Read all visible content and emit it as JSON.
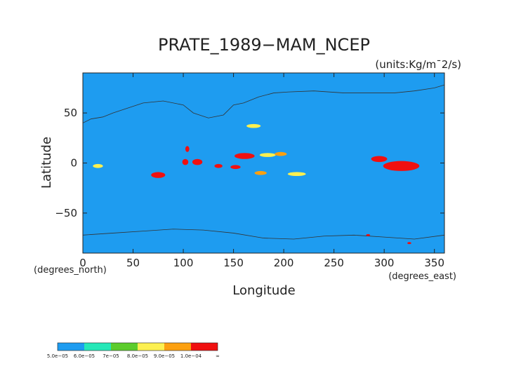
{
  "chart_data": {
    "type": "heatmap",
    "title": "PRATE_1989−MAM_NCEP",
    "units_label": "(units:Kg/m¯2/s)",
    "xlabel": "Longitude",
    "ylabel": "Latitude",
    "x_unit_note": "(degrees_east)",
    "y_unit_note": "(degrees_north)",
    "xlim": [
      0,
      360
    ],
    "ylim": [
      -90,
      90
    ],
    "x_ticks": [
      {
        "value": 0,
        "label": "0"
      },
      {
        "value": 50,
        "label": "50"
      },
      {
        "value": 100,
        "label": "100"
      },
      {
        "value": 150,
        "label": "150"
      },
      {
        "value": 200,
        "label": "200"
      },
      {
        "value": 250,
        "label": "250"
      },
      {
        "value": 300,
        "label": "300"
      },
      {
        "value": 350,
        "label": "350"
      }
    ],
    "y_ticks": [
      {
        "value": 50,
        "label": "50"
      },
      {
        "value": 0,
        "label": "0"
      },
      {
        "value": -50,
        "label": "−50"
      }
    ],
    "background_level_color": "#1e9cf0",
    "colorbar": {
      "colors": [
        "#1e9cf0",
        "#25e8b8",
        "#5ccc2c",
        "#fcf050",
        "#fca010",
        "#f01010"
      ],
      "labels": [
        "5.0e−05",
        "6.0e−05",
        "7e−05",
        "8.0e−05",
        "9.0e−05",
        "1.0e−04",
        "∞"
      ]
    },
    "features": [
      {
        "level": 5,
        "lon": 75,
        "lat": -12,
        "rx": 7,
        "ry": 3
      },
      {
        "level": 5,
        "lon": 102,
        "lat": 1,
        "rx": 3,
        "ry": 3
      },
      {
        "level": 5,
        "lon": 114,
        "lat": 1,
        "rx": 5,
        "ry": 3
      },
      {
        "level": 5,
        "lon": 135,
        "lat": -3,
        "rx": 4,
        "ry": 2
      },
      {
        "level": 5,
        "lon": 152,
        "lat": -4,
        "rx": 5,
        "ry": 2
      },
      {
        "level": 5,
        "lon": 161,
        "lat": 7,
        "rx": 10,
        "ry": 3
      },
      {
        "level": 5,
        "lon": 317,
        "lat": -3,
        "rx": 18,
        "ry": 5
      },
      {
        "level": 5,
        "lon": 295,
        "lat": 4,
        "rx": 8,
        "ry": 3
      },
      {
        "level": 5,
        "lon": 104,
        "lat": 14,
        "rx": 2,
        "ry": 3
      },
      {
        "level": 5,
        "lon": 325,
        "lat": -80,
        "rx": 2,
        "ry": 1
      },
      {
        "level": 5,
        "lon": 284,
        "lat": -72,
        "rx": 2,
        "ry": 1
      },
      {
        "level": 4,
        "lon": 197,
        "lat": 9,
        "rx": 6,
        "ry": 2
      },
      {
        "level": 4,
        "lon": 177,
        "lat": -10,
        "rx": 6,
        "ry": 2
      },
      {
        "level": 3,
        "lon": 213,
        "lat": -11,
        "rx": 9,
        "ry": 2
      },
      {
        "level": 3,
        "lon": 184,
        "lat": 8,
        "rx": 8,
        "ry": 2
      },
      {
        "level": 3,
        "lon": 170,
        "lat": 37,
        "rx": 7,
        "ry": 2
      },
      {
        "level": 3,
        "lon": 15,
        "lat": -3,
        "rx": 5,
        "ry": 2
      }
    ]
  },
  "map": {
    "boundaries": [
      {
        "fill": "#ffffff",
        "points": [
          [
            0,
            40
          ],
          [
            8,
            44
          ],
          [
            20,
            46
          ],
          [
            30,
            50
          ],
          [
            45,
            55
          ],
          [
            60,
            60
          ],
          [
            80,
            62
          ],
          [
            100,
            58
          ],
          [
            110,
            50
          ],
          [
            125,
            45
          ],
          [
            140,
            48
          ],
          [
            150,
            58
          ],
          [
            160,
            60
          ],
          [
            175,
            66
          ],
          [
            190,
            70
          ],
          [
            205,
            71
          ],
          [
            230,
            72
          ],
          [
            260,
            70
          ],
          [
            280,
            70
          ],
          [
            310,
            70
          ],
          [
            330,
            72
          ],
          [
            350,
            75
          ],
          [
            360,
            78
          ]
        ]
      },
      {
        "fill": "#ffffff",
        "points": [
          [
            0,
            -72
          ],
          [
            30,
            -70
          ],
          [
            60,
            -68
          ],
          [
            90,
            -66
          ],
          [
            120,
            -67
          ],
          [
            150,
            -70
          ],
          [
            180,
            -75
          ],
          [
            210,
            -76
          ],
          [
            240,
            -73
          ],
          [
            270,
            -72
          ],
          [
            300,
            -74
          ],
          [
            330,
            -76
          ],
          [
            360,
            -72
          ]
        ]
      }
    ]
  }
}
